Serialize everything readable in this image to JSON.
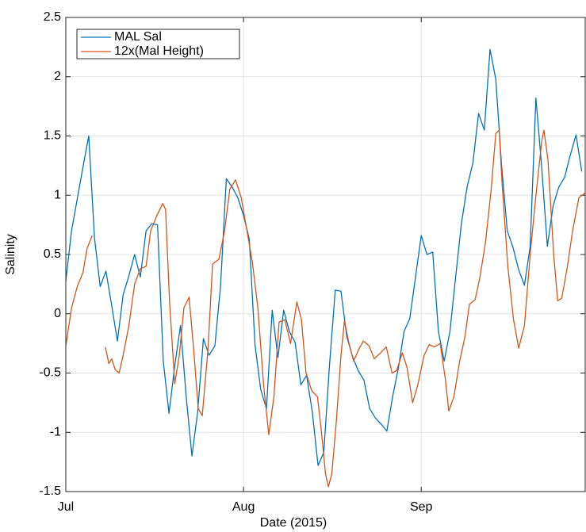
{
  "chart_data": {
    "type": "line",
    "xlabel": "Date (2015)",
    "ylabel": "Salinity",
    "xlim": [
      0,
      90.6
    ],
    "ylim": [
      -1.5,
      2.5
    ],
    "xticks": [
      {
        "value": 0,
        "label": "Jul"
      },
      {
        "value": 31,
        "label": "Aug"
      },
      {
        "value": 62,
        "label": "Sep"
      }
    ],
    "yticks": [
      -1.5,
      -1,
      -0.5,
      0,
      0.5,
      1,
      1.5,
      2,
      2.5
    ],
    "grid": true,
    "legend": "upper left",
    "series": [
      {
        "name": "MAL Sal",
        "color": "#0072BD",
        "x": [
          0,
          1,
          2,
          3,
          4,
          5,
          6,
          7,
          8,
          9,
          10,
          11,
          12,
          13,
          14,
          15,
          16,
          17,
          18,
          19,
          20,
          21,
          22,
          23,
          24,
          25,
          26,
          27,
          28,
          29,
          30,
          31,
          32,
          33,
          34,
          35,
          36,
          37,
          38,
          39,
          40,
          41,
          42,
          43,
          44,
          45,
          46,
          47,
          48,
          49,
          50,
          51,
          52,
          53,
          54,
          55,
          56,
          57,
          58,
          59,
          60,
          61,
          62,
          63,
          64,
          65,
          66,
          67,
          68,
          69,
          70,
          71,
          72,
          73,
          74,
          75,
          76,
          77,
          78,
          79,
          80,
          81,
          82,
          83,
          84,
          85,
          86,
          87,
          88,
          89,
          90
        ],
        "values": [
          0.28,
          0.7,
          0.97,
          1.24,
          1.5,
          0.64,
          0.23,
          0.36,
          0.07,
          -0.23,
          0.16,
          0.32,
          0.5,
          0.31,
          0.7,
          0.76,
          0.75,
          -0.4,
          -0.84,
          -0.44,
          -0.1,
          -0.7,
          -1.2,
          -0.83,
          -0.21,
          -0.35,
          -0.27,
          0.24,
          1.14,
          1.07,
          0.98,
          0.83,
          0.63,
          -0.26,
          -0.64,
          -0.8,
          0.03,
          -0.37,
          0.03,
          -0.15,
          -0.24,
          -0.6,
          -0.52,
          -0.83,
          -1.28,
          -1.17,
          -0.43,
          0.2,
          0.19,
          -0.19,
          -0.36,
          -0.48,
          -0.56,
          -0.8,
          -0.88,
          -0.93,
          -0.99,
          -0.7,
          -0.46,
          -0.15,
          -0.04,
          0.31,
          0.66,
          0.5,
          0.52,
          -0.15,
          -0.4,
          -0.15,
          0.31,
          0.76,
          1.07,
          1.27,
          1.69,
          1.55,
          2.23,
          1.98,
          1.26,
          0.7,
          0.56,
          0.37,
          0.24,
          0.57,
          1.82,
          1.24,
          0.57,
          0.91,
          1.07,
          1.15,
          1.34,
          1.51,
          1.2
        ]
      },
      {
        "name": "12x(Mal Height)",
        "color": "#D95319",
        "x": [
          0,
          1,
          2,
          3,
          3.7,
          4.6,
          5.5,
          6.9,
          7.5,
          8,
          8.6,
          9.3,
          10,
          11,
          12,
          13,
          14,
          14.8,
          15.9,
          16.9,
          17.4,
          18.1,
          19,
          19.8,
          20.6,
          21.5,
          22.3,
          23.1,
          23.8,
          24.8,
          25.6,
          26.7,
          27.7,
          28.6,
          29.6,
          30.6,
          31.6,
          32.5,
          33.5,
          34.5,
          35.4,
          36.3,
          37.2,
          38.2,
          39.2,
          40.3,
          41.1,
          41.9,
          42.9,
          43.9,
          44.6,
          45.3,
          45.8,
          46.4,
          47.2,
          48,
          48.6,
          49.4,
          50.2,
          51.1,
          51.9,
          52.9,
          53.8,
          54.9,
          55.9,
          56.9,
          57.7,
          58.7,
          59.5,
          60.5,
          61.4,
          62.5,
          63.4,
          64.3,
          65.3,
          66.2,
          66.8,
          67.7,
          68.7,
          69.6,
          70.4,
          71.4,
          72.2,
          73.2,
          74.2,
          75,
          75.6,
          76.1,
          77.1,
          78.1,
          79,
          80,
          81,
          81.9,
          83,
          83.4,
          84.1,
          85.1,
          85.8,
          86.5,
          87.5,
          88.4,
          89.5,
          90.6
        ],
        "values": [
          -0.27,
          0.05,
          0.23,
          0.35,
          0.55,
          0.66,
          null,
          -0.28,
          -0.42,
          -0.38,
          -0.47,
          -0.5,
          -0.35,
          -0.1,
          0.25,
          0.38,
          0.4,
          0.7,
          0.83,
          0.93,
          0.88,
          0.1,
          -0.59,
          -0.35,
          0.05,
          0.14,
          -0.3,
          -0.8,
          -0.86,
          -0.3,
          0.42,
          0.46,
          0.7,
          1.05,
          1.13,
          0.98,
          0.7,
          0.45,
          0.05,
          -0.6,
          -1.02,
          -0.7,
          -0.07,
          -0.05,
          -0.25,
          0.1,
          -0.05,
          -0.5,
          -0.65,
          -0.7,
          -1.0,
          -1.35,
          -1.46,
          -1.35,
          -0.9,
          -0.35,
          -0.06,
          -0.25,
          -0.4,
          -0.3,
          -0.23,
          -0.27,
          -0.38,
          -0.33,
          -0.28,
          -0.5,
          -0.48,
          -0.33,
          -0.45,
          -0.75,
          -0.6,
          -0.35,
          -0.26,
          -0.28,
          -0.25,
          -0.55,
          -0.82,
          -0.7,
          -0.4,
          -0.2,
          0.08,
          0.12,
          0.3,
          0.6,
          1.05,
          1.52,
          1.55,
          1.1,
          0.4,
          -0.05,
          -0.29,
          -0.1,
          0.5,
          0.95,
          1.45,
          1.55,
          1.3,
          0.5,
          0.11,
          0.13,
          0.4,
          0.7,
          0.98,
          1.02
        ]
      }
    ]
  }
}
